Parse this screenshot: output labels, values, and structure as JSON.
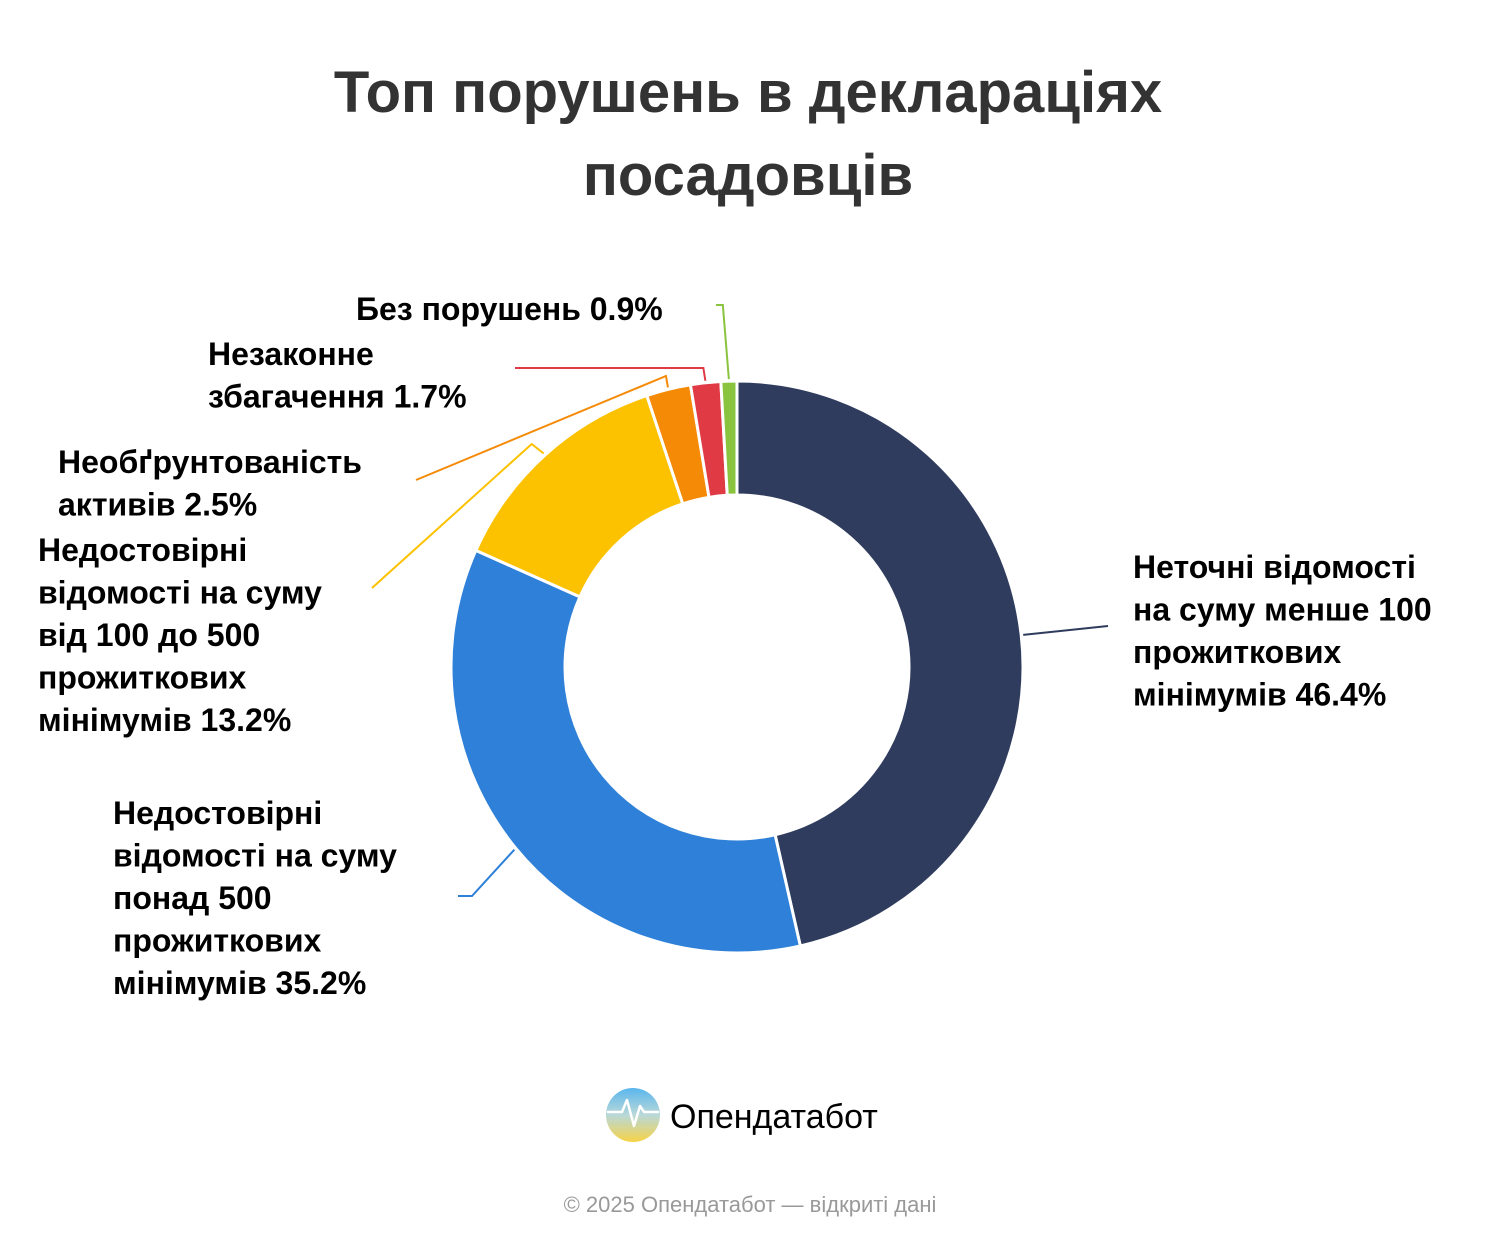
{
  "chart_data": {
    "type": "pie",
    "variant": "donut",
    "title": "Топ порушень в деклараціях посадовців",
    "title_lines": [
      "Топ порушень в деклараціях",
      "посадовців"
    ],
    "unit": "%",
    "legend": "none",
    "slices": [
      {
        "label_lines": [
          "Неточні відомості",
          "на суму менше 100",
          "прожиткових",
          "мінімумів 46.4%"
        ],
        "value": 46.4,
        "color": "#2f3c5e"
      },
      {
        "label_lines": [
          "Недостовірні",
          "відомості на суму",
          "понад 500",
          "прожиткових",
          "мінімумів 35.2%"
        ],
        "value": 35.2,
        "color": "#2e80d8"
      },
      {
        "label_lines": [
          "Недостовірні",
          "відомості на суму",
          "від 100 до 500",
          "прожиткових",
          "мінімумів 13.2%"
        ],
        "value": 13.2,
        "color": "#fcc200"
      },
      {
        "label_lines": [
          "Необґрунтованість",
          "активів 2.5%"
        ],
        "value": 2.5,
        "color": "#f58a07"
      },
      {
        "label_lines": [
          "Незаконне",
          "збагачення 1.7%"
        ],
        "value": 1.7,
        "color": "#e03a45"
      },
      {
        "label_lines": [
          "Без порушень 0.9%"
        ],
        "value": 0.9,
        "color": "#8ac43f"
      }
    ]
  },
  "branding": {
    "logo_icon": "opendatabot-logo-icon",
    "name": "Опендатабот",
    "footer": "© 2025 Опендатабот — відкриті дані"
  }
}
